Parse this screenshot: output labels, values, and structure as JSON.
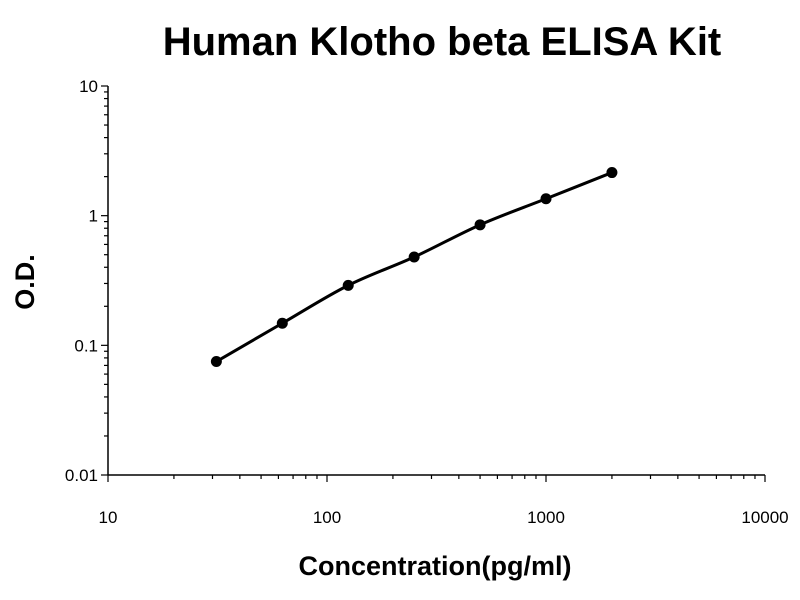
{
  "chart_data": {
    "type": "scatter",
    "title": "Human Klotho beta ELISA Kit",
    "xlabel": "Concentration(pg/ml)",
    "ylabel": "O.D.",
    "x_scale": "log",
    "y_scale": "log",
    "xlim": [
      10,
      10000
    ],
    "ylim": [
      0.01,
      10
    ],
    "x_ticks": [
      10,
      100,
      1000,
      10000
    ],
    "x_tick_labels": [
      "10",
      "100",
      "1000",
      "10000"
    ],
    "y_ticks": [
      0.01,
      0.1,
      1,
      10
    ],
    "y_tick_labels": [
      "0.01",
      "0.1",
      "1",
      "10"
    ],
    "grid": false,
    "legend": "none",
    "series": [
      {
        "x": [
          31.25,
          62.5,
          125,
          250,
          500,
          1000,
          2000
        ],
        "y": [
          0.075,
          0.148,
          0.29,
          0.48,
          0.85,
          1.35,
          2.15
        ],
        "fit_curve": true
      }
    ]
  }
}
